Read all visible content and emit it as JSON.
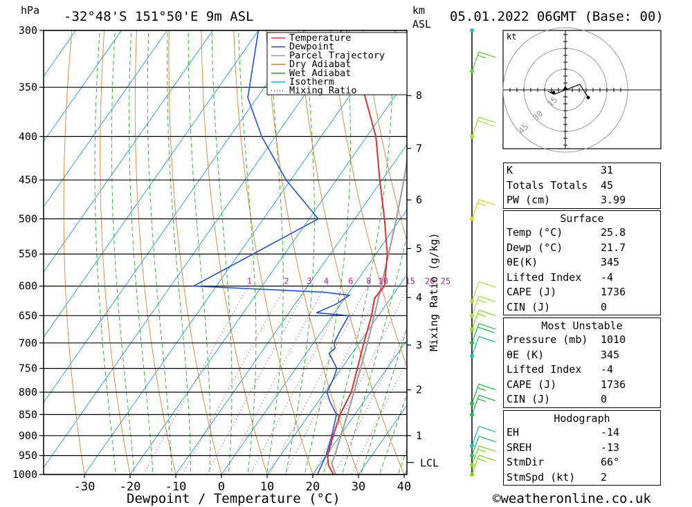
{
  "header": {
    "pressure_unit": "hPa",
    "location": "-32°48'S  151°50'E  9m  ASL",
    "km_label": "km",
    "asl_label": "ASL",
    "datetime": "05.01.2022  06GMT  (Base: 00)"
  },
  "chart_data": {
    "type": "line",
    "xlabel": "Dewpoint / Temperature (°C)",
    "ylabel": "hPa",
    "y2label": "Mixing Ratio (g/kg)",
    "x_ticks": [
      -30,
      -20,
      -10,
      0,
      10,
      20,
      30,
      40
    ],
    "pressure_levels": [
      300,
      350,
      400,
      450,
      500,
      550,
      600,
      650,
      700,
      750,
      800,
      850,
      900,
      950,
      1000
    ],
    "km_ticks": [
      1,
      2,
      3,
      4,
      5,
      6,
      7,
      8
    ],
    "lcl_label": "LCL",
    "mixing_ratio_labels": [
      "1",
      "2",
      "3",
      "4",
      "6",
      "8",
      "10",
      "15",
      "20",
      "25"
    ],
    "legend": [
      "Temperature",
      "Dewpoint",
      "Parcel Trajectory",
      "Dry Adiabat",
      "Wet Adiabat",
      "Isotherm",
      "Mixing Ratio"
    ],
    "colors": {
      "temperature": "#e03030",
      "dewpoint": "#2050e0",
      "parcel": "#a0a0a0",
      "dry": "#e08030",
      "wet": "#20b020",
      "isotherm": "#20a0e0",
      "mixing": "#c020a0"
    },
    "series": [
      {
        "name": "Temperature",
        "points": [
          [
            1010,
            25.8
          ],
          [
            1000,
            24.5
          ],
          [
            975,
            22.0
          ],
          [
            950,
            20.3
          ],
          [
            900,
            18.5
          ],
          [
            850,
            16.8
          ],
          [
            800,
            15.8
          ],
          [
            750,
            13.5
          ],
          [
            700,
            11.0
          ],
          [
            650,
            8.5
          ],
          [
            620,
            6.5
          ],
          [
            600,
            6.8
          ],
          [
            550,
            2.5
          ],
          [
            500,
            -3.5
          ],
          [
            450,
            -10.5
          ],
          [
            400,
            -18.0
          ],
          [
            350,
            -28.5
          ],
          [
            300,
            -42.0
          ]
        ]
      },
      {
        "name": "Dewpoint",
        "points": [
          [
            1010,
            21.7
          ],
          [
            1000,
            21.0
          ],
          [
            950,
            20.0
          ],
          [
            900,
            18.2
          ],
          [
            850,
            16.0
          ],
          [
            820,
            12.5
          ],
          [
            800,
            10.5
          ],
          [
            770,
            9.8
          ],
          [
            750,
            9.0
          ],
          [
            720,
            5.0
          ],
          [
            710,
            5.5
          ],
          [
            700,
            4.5
          ],
          [
            680,
            4.0
          ],
          [
            650,
            3.5
          ],
          [
            645,
            -4.0
          ],
          [
            630,
            -1.0
          ],
          [
            615,
            0.5
          ],
          [
            610,
            -5.5
          ],
          [
            600,
            -35.0
          ],
          [
            500,
            -18.0
          ],
          [
            450,
            -31.0
          ],
          [
            400,
            -43.0
          ],
          [
            360,
            -52.0
          ],
          [
            300,
            -60.0
          ]
        ]
      },
      {
        "name": "Parcel Trajectory",
        "points": [
          [
            1010,
            25.8
          ],
          [
            970,
            22.4
          ],
          [
            950,
            21.9
          ],
          [
            900,
            20.2
          ],
          [
            850,
            18.4
          ],
          [
            800,
            16.4
          ],
          [
            750,
            14.2
          ],
          [
            700,
            11.8
          ],
          [
            650,
            9.1
          ],
          [
            600,
            6.1
          ],
          [
            550,
            2.8
          ],
          [
            500,
            -0.9
          ],
          [
            450,
            -5.2
          ],
          [
            400,
            -10.3
          ],
          [
            370,
            -13.7
          ],
          [
            350,
            -16.0
          ],
          [
            300,
            -22.5
          ]
        ]
      }
    ],
    "wind_barbs": [
      {
        "pressure": 1000,
        "speed_kt": 15,
        "color": "#80e020"
      },
      {
        "pressure": 975,
        "speed_kt": 15,
        "color": "#80e020"
      },
      {
        "pressure": 950,
        "speed_kt": 10,
        "color": "#20c060"
      },
      {
        "pressure": 925,
        "speed_kt": 10,
        "color": "#20c0a0"
      },
      {
        "pressure": 850,
        "speed_kt": 15,
        "color": "#20c040"
      },
      {
        "pressure": 825,
        "speed_kt": 15,
        "color": "#20c040"
      },
      {
        "pressure": 725,
        "speed_kt": 10,
        "color": "#20c0a0"
      },
      {
        "pressure": 700,
        "speed_kt": 20,
        "color": "#20c040"
      },
      {
        "pressure": 675,
        "speed_kt": 15,
        "color": "#80e020"
      },
      {
        "pressure": 650,
        "speed_kt": 15,
        "color": "#a0e040"
      },
      {
        "pressure": 625,
        "speed_kt": 10,
        "color": "#b0e040"
      },
      {
        "pressure": 500,
        "speed_kt": 15,
        "color": "#f0d020"
      },
      {
        "pressure": 400,
        "speed_kt": 20,
        "color": "#a0e040"
      },
      {
        "pressure": 335,
        "speed_kt": 15,
        "color": "#60d040"
      },
      {
        "pressure": 300,
        "speed_kt": 0,
        "color": "#20c0c0"
      }
    ],
    "hodograph": {
      "unit": "kt",
      "ring_labels": [
        "15",
        "30",
        "45"
      ]
    }
  },
  "table": {
    "indices": [
      {
        "label": "K",
        "value": "31"
      },
      {
        "label": "Totals Totals",
        "value": "45"
      },
      {
        "label": "PW (cm)",
        "value": "3.99"
      }
    ],
    "surface": {
      "title": "Surface",
      "rows": [
        {
          "label": "Temp (°C)",
          "value": "25.8"
        },
        {
          "label": "Dewp (°C)",
          "value": "21.7"
        },
        {
          "label": "θE(K)",
          "value": "345"
        },
        {
          "label": "Lifted Index",
          "value": "-4"
        },
        {
          "label": "CAPE (J)",
          "value": "1736"
        },
        {
          "label": "CIN (J)",
          "value": "0"
        }
      ]
    },
    "most_unstable": {
      "title": "Most Unstable",
      "rows": [
        {
          "label": "Pressure (mb)",
          "value": "1010"
        },
        {
          "label": "θE (K)",
          "value": "345"
        },
        {
          "label": "Lifted Index",
          "value": "-4"
        },
        {
          "label": "CAPE (J)",
          "value": "1736"
        },
        {
          "label": "CIN (J)",
          "value": "0"
        }
      ]
    },
    "hodograph": {
      "title": "Hodograph",
      "rows": [
        {
          "label": "EH",
          "value": "-14"
        },
        {
          "label": "SREH",
          "value": "-13"
        },
        {
          "label": "StmDir",
          "value": "66°"
        },
        {
          "label": "StmSpd (kt)",
          "value": "2"
        }
      ]
    }
  },
  "footer": {
    "credit": "©weatheronline.co.uk"
  }
}
